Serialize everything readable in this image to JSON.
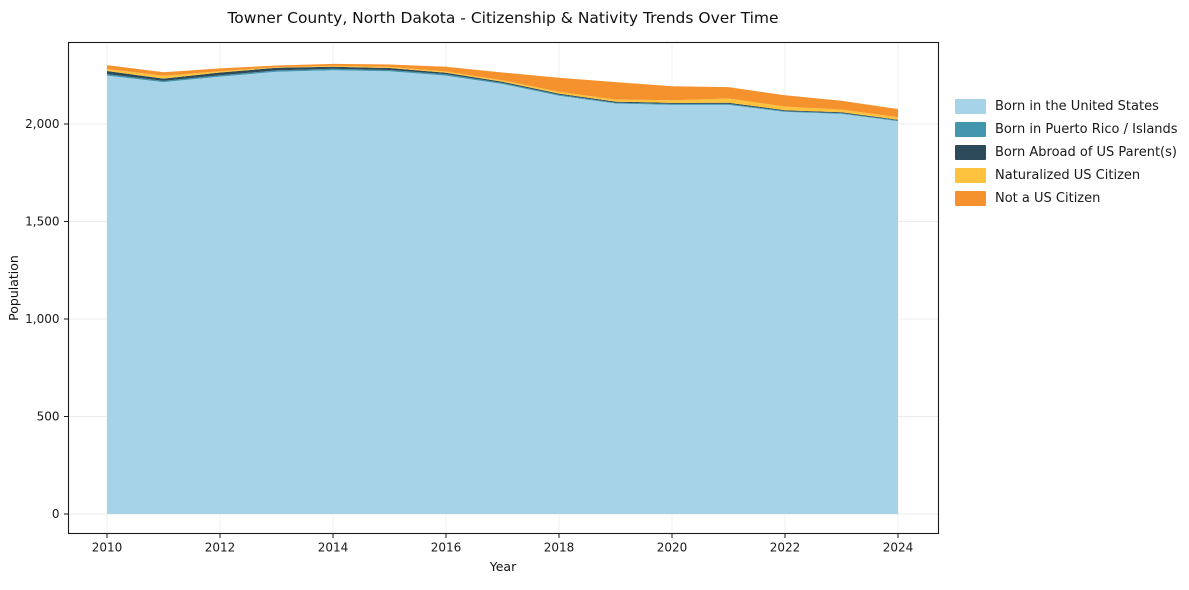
{
  "chart_data": {
    "type": "area",
    "stacked": true,
    "title": "Towner County, North Dakota - Citizenship & Nativity Trends Over Time",
    "xlabel": "Year",
    "ylabel": "Population",
    "x": [
      2010,
      2011,
      2012,
      2013,
      2014,
      2015,
      2016,
      2017,
      2018,
      2019,
      2020,
      2021,
      2022,
      2023,
      2024
    ],
    "series": [
      {
        "name": "Born in the United States",
        "color": "#a6d3e8",
        "values": [
          2248,
          2215,
          2243,
          2268,
          2276,
          2270,
          2248,
          2205,
          2145,
          2105,
          2098,
          2098,
          2062,
          2052,
          2015
        ]
      },
      {
        "name": "Born in Puerto Rico / Islands",
        "color": "#4396ae",
        "values": [
          8,
          6,
          7,
          7,
          7,
          7,
          7,
          6,
          6,
          5,
          5,
          5,
          4,
          4,
          4
        ]
      },
      {
        "name": "Born Abroad of US Parent(s)",
        "color": "#2d4a5a",
        "values": [
          16,
          12,
          14,
          13,
          11,
          10,
          8,
          6,
          5,
          5,
          5,
          6,
          5,
          4,
          3
        ]
      },
      {
        "name": "Naturalized US Citizen",
        "color": "#fdc23e",
        "values": [
          10,
          14,
          7,
          4,
          4,
          6,
          6,
          7,
          9,
          10,
          14,
          22,
          18,
          14,
          13
        ]
      },
      {
        "name": "Not a US Citizen",
        "color": "#f6922e",
        "values": [
          20,
          18,
          14,
          8,
          10,
          12,
          25,
          40,
          72,
          90,
          72,
          58,
          58,
          45,
          42
        ]
      }
    ],
    "x_ticks": [
      "2010",
      "2012",
      "2014",
      "2016",
      "2018",
      "2020",
      "2022",
      "2024"
    ],
    "x_tick_values": [
      2010,
      2012,
      2014,
      2016,
      2018,
      2020,
      2022,
      2024
    ],
    "y_ticks": [
      "0",
      "500",
      "1,000",
      "1,500",
      "2,000"
    ],
    "y_tick_values": [
      0,
      500,
      1000,
      1500,
      2000
    ],
    "xlim": [
      2010,
      2024
    ],
    "ylim": [
      0,
      2420
    ],
    "grid": true,
    "legend_position": "right"
  }
}
